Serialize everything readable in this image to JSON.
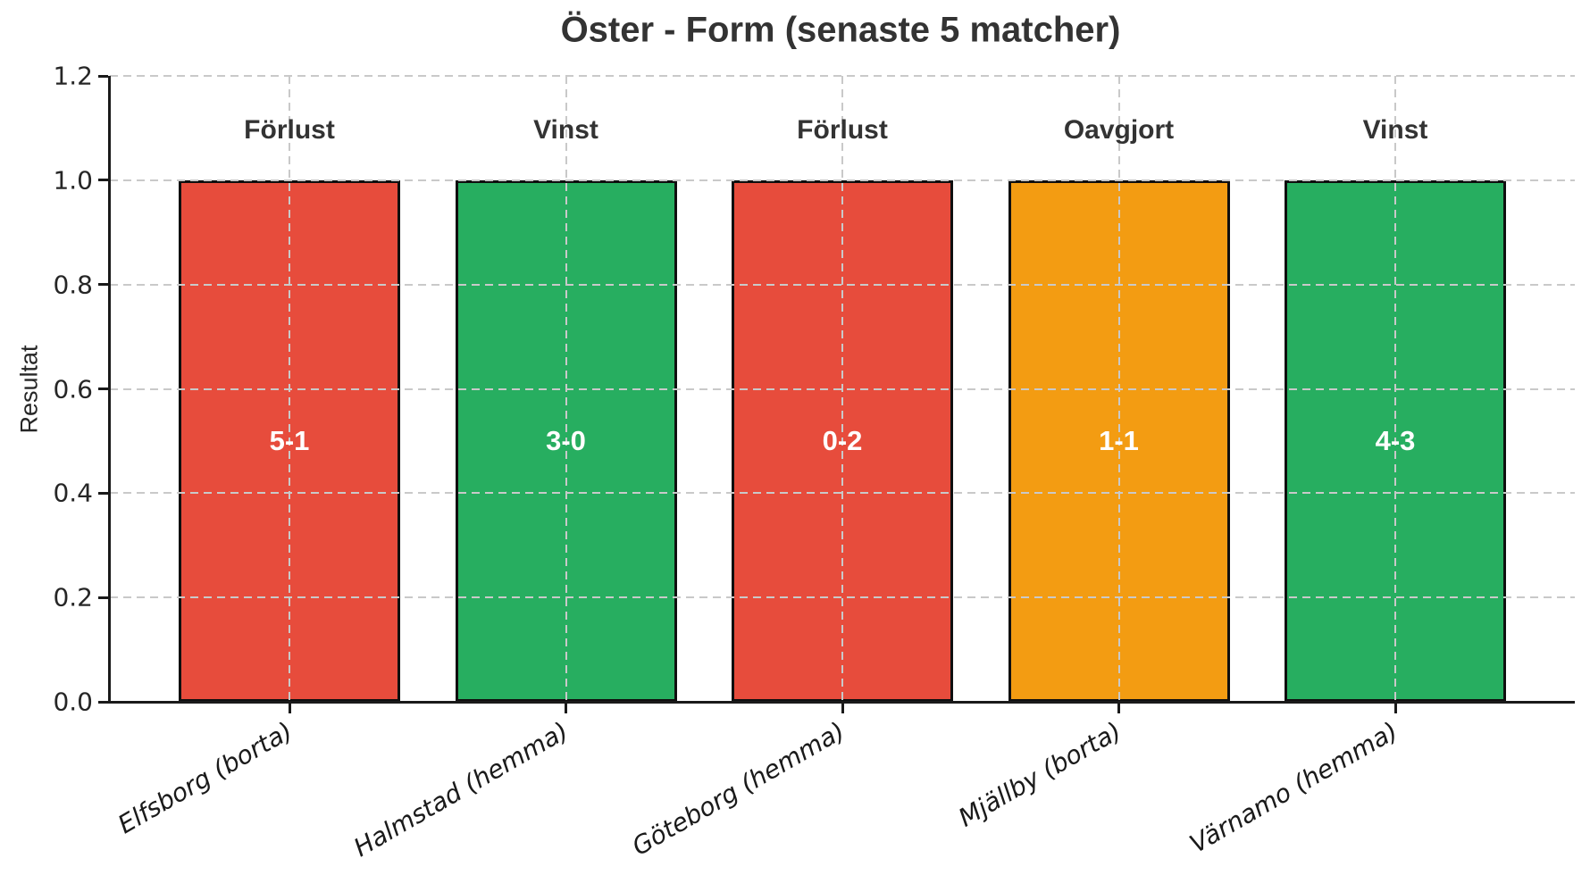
{
  "chart_data": {
    "type": "bar",
    "title": "Öster - Form (senaste 5 matcher)",
    "xlabel": "",
    "ylabel": "Resultat",
    "ylim": [
      0,
      1.2
    ],
    "yticks": [
      0.0,
      0.2,
      0.4,
      0.6,
      0.8,
      1.0,
      1.2
    ],
    "grid": true,
    "legend": "none",
    "categories": [
      "Elfsborg (borta)",
      "Halmstad (hemma)",
      "Göteborg (hemma)",
      "Mjällby (borta)",
      "Värnamo (hemma)"
    ],
    "values": [
      1.0,
      1.0,
      1.0,
      1.0,
      1.0
    ],
    "bars": [
      {
        "category": "Elfsborg (borta)",
        "value": 1.0,
        "result": "Förlust",
        "score": "5-1",
        "color": "#e74c3c"
      },
      {
        "category": "Halmstad (hemma)",
        "value": 1.0,
        "result": "Vinst",
        "score": "3-0",
        "color": "#27ae60"
      },
      {
        "category": "Göteborg (hemma)",
        "value": 1.0,
        "result": "Förlust",
        "score": "0-2",
        "color": "#e74c3c"
      },
      {
        "category": "Mjällby (borta)",
        "value": 1.0,
        "result": "Oavgjort",
        "score": "1-1",
        "color": "#f39c12"
      },
      {
        "category": "Värnamo (hemma)",
        "value": 1.0,
        "result": "Vinst",
        "score": "4-3",
        "color": "#27ae60"
      }
    ],
    "colors": {
      "win": "#27ae60",
      "loss": "#e74c3c",
      "draw": "#f39c12",
      "bar_edge": "#0f0f0f",
      "grid": "#c9c9c9",
      "text": "#333333",
      "score_text": "#ffffff"
    }
  }
}
